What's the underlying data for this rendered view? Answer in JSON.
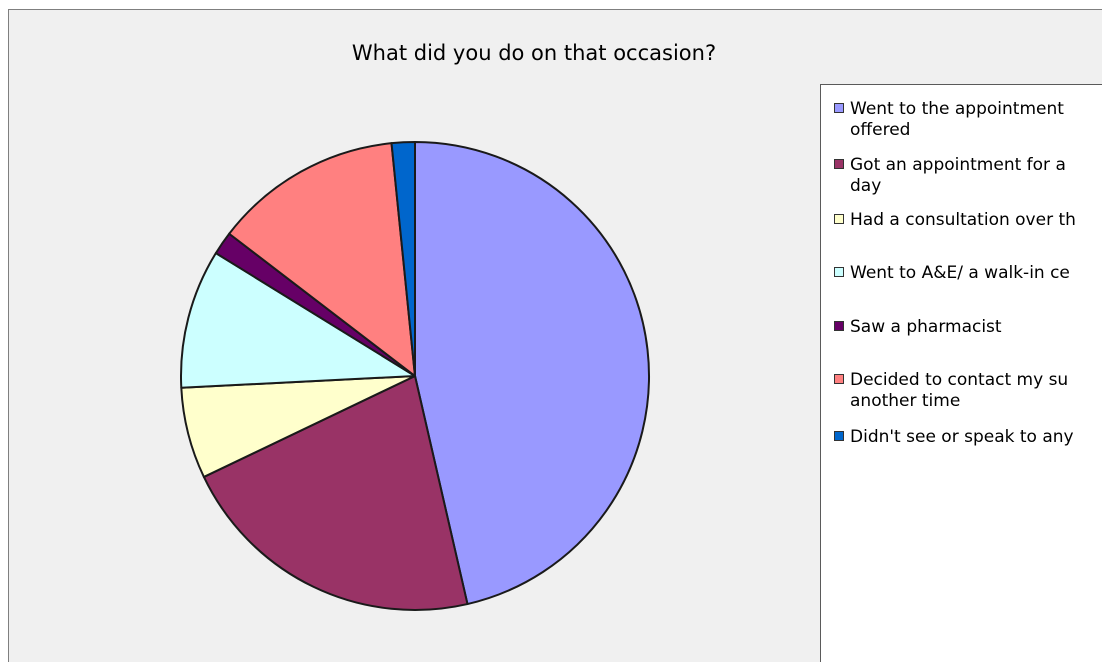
{
  "chart_data": {
    "type": "pie",
    "title": "What did you do on that occasion?",
    "slices": [
      {
        "label": "Went to the appointment offered",
        "value": 46.4,
        "color": "#9999ff"
      },
      {
        "label": "Got an appointment for a different day",
        "value": 21.5,
        "color": "#993366"
      },
      {
        "label": "Had a consultation over the phone",
        "value": 6.3,
        "color": "#ffffcc"
      },
      {
        "label": "Went to A&E/ a walk-in centre",
        "value": 9.6,
        "color": "#ccffff"
      },
      {
        "label": "Saw a pharmacist",
        "value": 1.6,
        "color": "#660066"
      },
      {
        "label": "Decided to contact my surgery another time",
        "value": 13.0,
        "color": "#ff8080"
      },
      {
        "label": "Didn't see or speak to anyone",
        "value": 1.6,
        "color": "#0066cc"
      }
    ],
    "legend_position": "right"
  },
  "legend_display": [
    "Went to the appointment\noffered",
    "Got an appointment for a\nday",
    "Had a consultation over th",
    "Went to A&E/ a walk-in ce",
    "Saw a pharmacist",
    "Decided to contact my su\nanother time",
    "Didn't see or speak to any"
  ]
}
